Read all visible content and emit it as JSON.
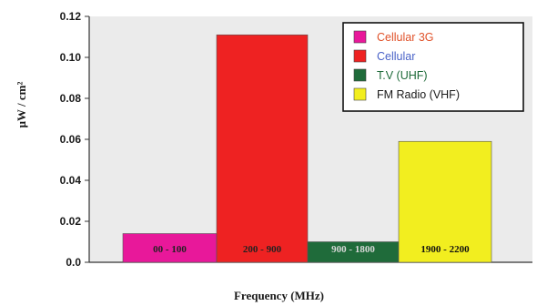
{
  "chart_data": {
    "type": "bar",
    "categories": [
      "00 - 100",
      "200 - 900",
      "900 - 1800",
      "1900 - 2200"
    ],
    "series": [
      {
        "name": "Cellular 3G",
        "category": "00 - 100",
        "value": 0.014,
        "color": "#e8189a"
      },
      {
        "name": "Cellular",
        "category": "200 - 900",
        "value": 0.111,
        "color": "#ee2222"
      },
      {
        "name": "T.V (UHF)",
        "category": "900 - 1800",
        "value": 0.01,
        "color": "#1f6b3a"
      },
      {
        "name": "FM Radio (VHF)",
        "category": "1900 - 2200",
        "value": 0.059,
        "color": "#f2ee1f"
      }
    ],
    "xlabel": "Frequency (MHz)",
    "ylabel": "μW / cm²",
    "ylim": [
      0,
      0.12
    ],
    "yticks": [
      "0.0",
      "0.02",
      "0.04",
      "0.06",
      "0.08",
      "0.10",
      "0.12"
    ],
    "grid": false,
    "legend_position": "top-right",
    "legend": [
      {
        "label": "Cellular 3G",
        "text_color": "#e0522a",
        "swatch": "#e8189a"
      },
      {
        "label": "Cellular",
        "text_color": "#4a63c8",
        "swatch": "#ee2222"
      },
      {
        "label": "T.V (UHF)",
        "text_color": "#1f6b3a",
        "swatch": "#1f6b3a"
      },
      {
        "label": "FM Radio (VHF)",
        "text_color": "#1a1a1a",
        "swatch": "#f2ee1f"
      }
    ],
    "bar_label_colors": [
      "#222222",
      "#222222",
      "#d8d8d8",
      "#111111"
    ],
    "plot_background": "#ebebeb"
  }
}
